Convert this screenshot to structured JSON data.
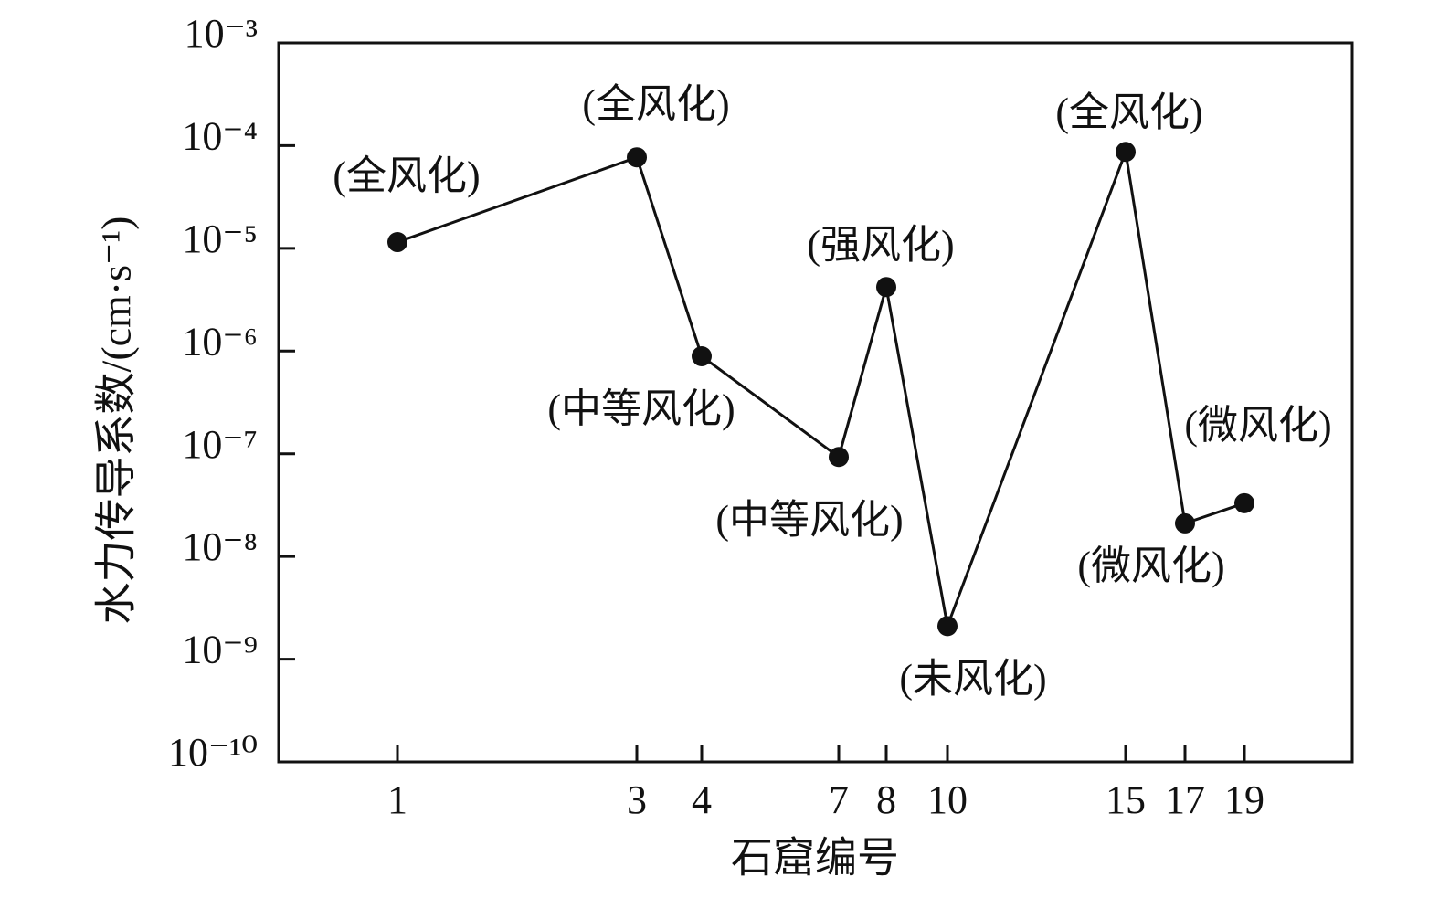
{
  "chart_data": {
    "type": "line",
    "log_y": true,
    "x_label": "石窟编号",
    "y_label": "水力传导系数/(cm·s⁻¹)",
    "categories": [
      "1",
      "3",
      "4",
      "7",
      "8",
      "10",
      "15",
      "17",
      "19"
    ],
    "values": [
      1.15e-05,
      7.7e-05,
      8.9e-07,
      9.3e-08,
      4.2e-06,
      2.1e-09,
      8.7e-05,
      2.1e-08,
      3.3e-08
    ],
    "point_labels": [
      "(全风化)",
      "(全风化)",
      "(中等风化)",
      "(中等风化)",
      "(强风化)",
      "(未风化)",
      "(全风化)",
      "(微风化)",
      "(微风化)"
    ],
    "color": "#111111",
    "ylim": [
      1e-10,
      0.001
    ],
    "yticks": [
      {
        "value": 1e-10,
        "label": "10⁻¹⁰"
      },
      {
        "value": 1e-09,
        "label": "10⁻⁹"
      },
      {
        "value": 1e-08,
        "label": "10⁻⁸"
      },
      {
        "value": 1e-07,
        "label": "10⁻⁷"
      },
      {
        "value": 1e-06,
        "label": "10⁻⁶"
      },
      {
        "value": 1e-05,
        "label": "10⁻⁵"
      },
      {
        "value": 0.0001,
        "label": "10⁻⁴"
      },
      {
        "value": 0.001,
        "label": "10⁻³"
      }
    ]
  }
}
